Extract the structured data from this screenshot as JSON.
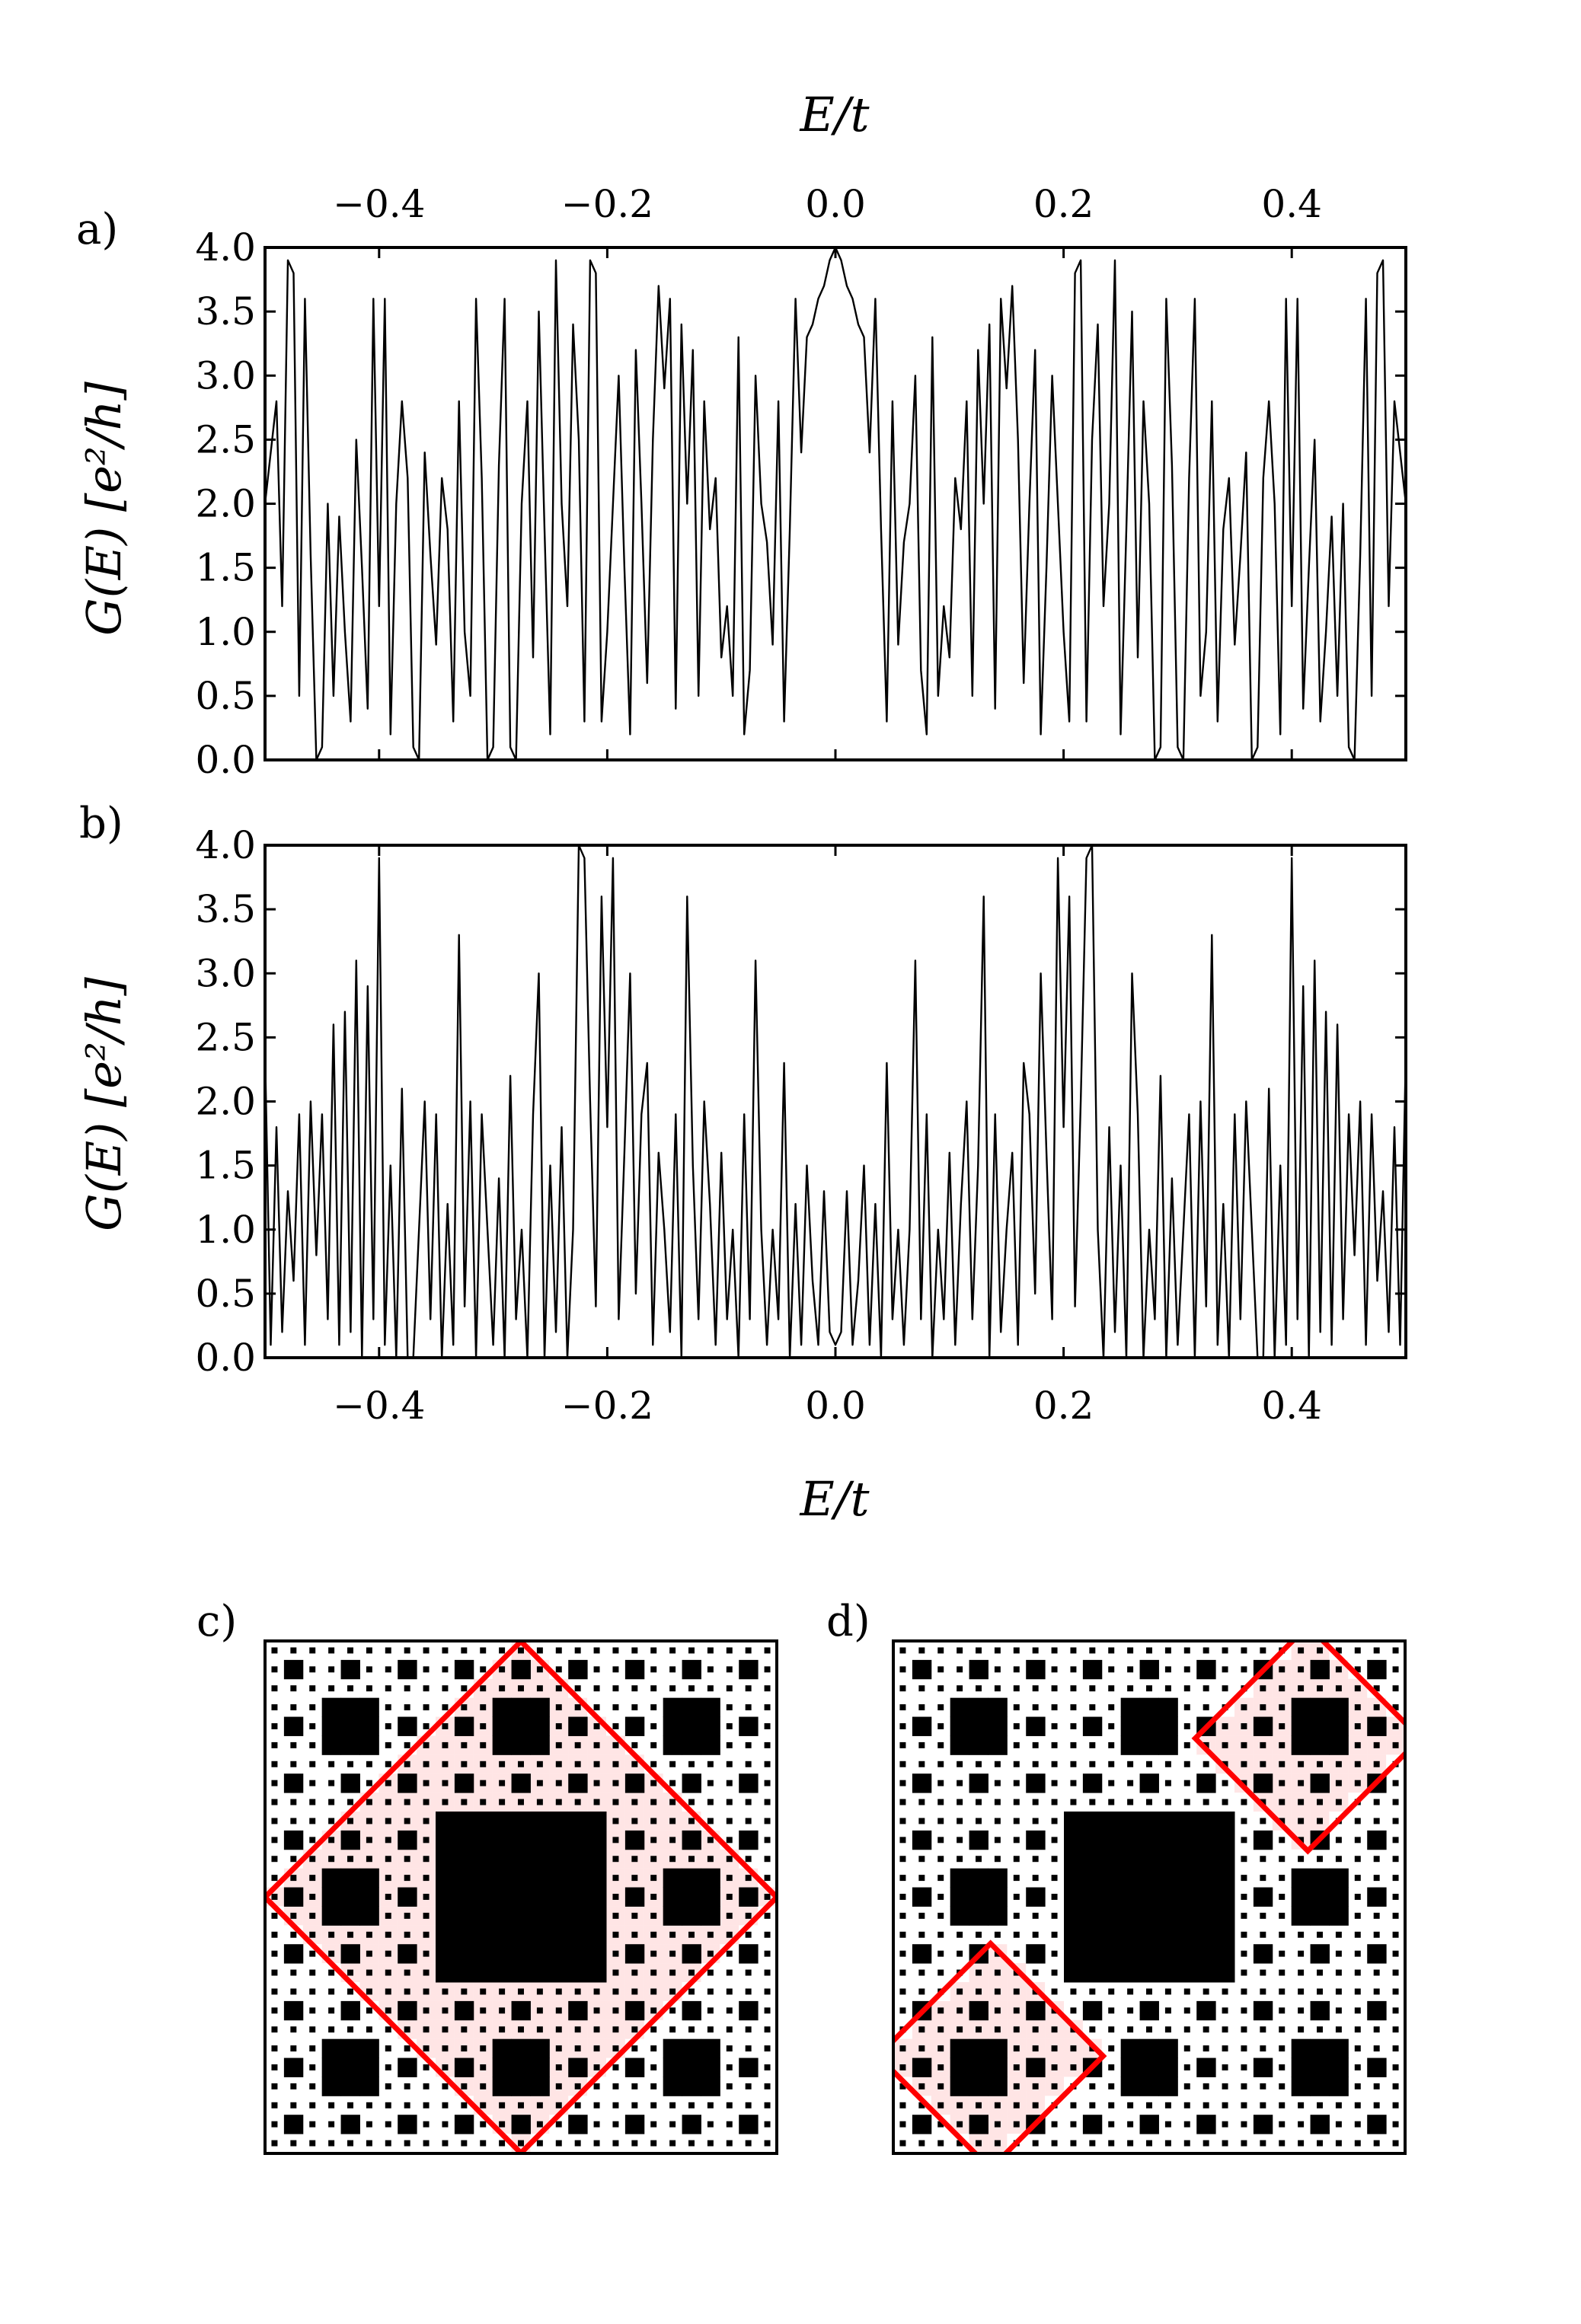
{
  "panel_labels": [
    "a)",
    "b)",
    "c)",
    "d)"
  ],
  "chart_data": [
    {
      "panel": "a)",
      "type": "line",
      "xlabel": "E/t",
      "xlabel_position": "top",
      "ylabel": "G(E) [e²/h]",
      "xlim": [
        -0.5,
        0.5
      ],
      "ylim": [
        0.0,
        4.0
      ],
      "xticks": [
        "−0.4",
        "−0.2",
        "0.0",
        "0.2",
        "0.4"
      ],
      "xtick_values": [
        -0.4,
        -0.2,
        0.0,
        0.2,
        0.4
      ],
      "yticks": [
        "0.0",
        "0.5",
        "1.0",
        "1.5",
        "2.0",
        "2.5",
        "3.0",
        "3.5",
        "4.0"
      ],
      "ytick_values": [
        0.0,
        0.5,
        1.0,
        1.5,
        2.0,
        2.5,
        3.0,
        3.5,
        4.0
      ],
      "color": "#000000",
      "symmetric": true,
      "x": [
        -0.5,
        -0.49,
        -0.485,
        -0.48,
        -0.475,
        -0.47,
        -0.465,
        -0.46,
        -0.455,
        -0.45,
        -0.445,
        -0.44,
        -0.435,
        -0.43,
        -0.425,
        -0.42,
        -0.415,
        -0.41,
        -0.405,
        -0.4,
        -0.395,
        -0.39,
        -0.385,
        -0.38,
        -0.375,
        -0.37,
        -0.365,
        -0.36,
        -0.355,
        -0.35,
        -0.345,
        -0.34,
        -0.335,
        -0.33,
        -0.325,
        -0.32,
        -0.315,
        -0.31,
        -0.305,
        -0.3,
        -0.295,
        -0.29,
        -0.285,
        -0.28,
        -0.275,
        -0.27,
        -0.265,
        -0.26,
        -0.255,
        -0.25,
        -0.245,
        -0.24,
        -0.235,
        -0.23,
        -0.225,
        -0.22,
        -0.215,
        -0.21,
        -0.205,
        -0.2,
        -0.195,
        -0.19,
        -0.185,
        -0.18,
        -0.175,
        -0.17,
        -0.165,
        -0.16,
        -0.155,
        -0.15,
        -0.145,
        -0.14,
        -0.135,
        -0.13,
        -0.125,
        -0.12,
        -0.115,
        -0.11,
        -0.105,
        -0.1,
        -0.095,
        -0.09,
        -0.085,
        -0.08,
        -0.075,
        -0.07,
        -0.065,
        -0.06,
        -0.055,
        -0.05,
        -0.045,
        -0.04,
        -0.035,
        -0.03,
        -0.025,
        -0.02,
        -0.015,
        -0.01,
        -0.005,
        0.0
      ],
      "y": [
        2.0,
        2.8,
        1.2,
        3.9,
        3.8,
        0.5,
        3.6,
        1.6,
        0.0,
        0.1,
        2.0,
        0.5,
        1.9,
        1.0,
        0.3,
        2.5,
        1.5,
        0.4,
        3.6,
        1.2,
        3.6,
        0.2,
        2.0,
        2.8,
        2.2,
        0.1,
        0.0,
        2.4,
        1.6,
        0.9,
        2.2,
        1.8,
        0.3,
        2.8,
        1.0,
        0.5,
        3.6,
        2.2,
        0.0,
        0.1,
        2.3,
        3.6,
        0.1,
        0.0,
        2.0,
        2.8,
        0.8,
        3.5,
        1.8,
        0.2,
        3.9,
        2.0,
        1.2,
        3.4,
        2.5,
        0.3,
        3.9,
        3.8,
        0.3,
        1.0,
        2.0,
        3.0,
        1.5,
        0.2,
        3.2,
        2.0,
        0.6,
        2.5,
        3.7,
        2.9,
        3.6,
        0.4,
        3.4,
        2.0,
        3.2,
        0.5,
        2.8,
        1.8,
        2.2,
        0.8,
        1.2,
        0.5,
        3.3,
        0.2,
        0.7,
        3.0,
        2.0,
        1.7,
        0.9,
        2.8,
        0.3,
        1.8,
        3.6,
        2.4,
        3.3,
        3.4,
        3.6,
        3.7,
        3.9,
        4.0
      ]
    },
    {
      "panel": "b)",
      "type": "line",
      "xlabel": "E/t",
      "xlabel_position": "bottom",
      "ylabel": "G(E) [e²/h]",
      "xlim": [
        -0.5,
        0.5
      ],
      "ylim": [
        0.0,
        4.0
      ],
      "xticks": [
        "−0.4",
        "−0.2",
        "0.0",
        "0.2",
        "0.4"
      ],
      "xtick_values": [
        -0.4,
        -0.2,
        0.0,
        0.2,
        0.4
      ],
      "yticks": [
        "0.0",
        "0.5",
        "1.0",
        "1.5",
        "2.0",
        "2.5",
        "3.0",
        "3.5",
        "4.0"
      ],
      "ytick_values": [
        0.0,
        0.5,
        1.0,
        1.5,
        2.0,
        2.5,
        3.0,
        3.5,
        4.0
      ],
      "color": "#000000",
      "symmetric": true,
      "x": [
        -0.5,
        -0.495,
        -0.49,
        -0.485,
        -0.48,
        -0.475,
        -0.47,
        -0.465,
        -0.46,
        -0.455,
        -0.45,
        -0.445,
        -0.44,
        -0.435,
        -0.43,
        -0.425,
        -0.42,
        -0.415,
        -0.41,
        -0.405,
        -0.4,
        -0.395,
        -0.39,
        -0.385,
        -0.38,
        -0.375,
        -0.37,
        -0.365,
        -0.36,
        -0.355,
        -0.35,
        -0.345,
        -0.34,
        -0.335,
        -0.33,
        -0.325,
        -0.32,
        -0.315,
        -0.31,
        -0.305,
        -0.3,
        -0.295,
        -0.29,
        -0.285,
        -0.28,
        -0.275,
        -0.27,
        -0.265,
        -0.26,
        -0.255,
        -0.25,
        -0.245,
        -0.24,
        -0.235,
        -0.23,
        -0.225,
        -0.22,
        -0.215,
        -0.21,
        -0.205,
        -0.2,
        -0.195,
        -0.19,
        -0.185,
        -0.18,
        -0.175,
        -0.17,
        -0.165,
        -0.16,
        -0.155,
        -0.15,
        -0.145,
        -0.14,
        -0.135,
        -0.13,
        -0.125,
        -0.12,
        -0.115,
        -0.11,
        -0.105,
        -0.1,
        -0.095,
        -0.09,
        -0.085,
        -0.08,
        -0.075,
        -0.07,
        -0.065,
        -0.06,
        -0.055,
        -0.05,
        -0.045,
        -0.04,
        -0.035,
        -0.03,
        -0.025,
        -0.02,
        -0.015,
        -0.01,
        -0.005,
        0.0
      ],
      "y": [
        2.4,
        0.1,
        1.8,
        0.2,
        1.3,
        0.6,
        1.9,
        0.1,
        2.0,
        0.8,
        1.9,
        0.3,
        2.6,
        0.1,
        2.7,
        0.2,
        3.1,
        0.0,
        2.9,
        0.3,
        3.9,
        0.1,
        1.5,
        0.0,
        2.1,
        0.0,
        0.0,
        1.0,
        2.0,
        0.3,
        1.9,
        0.0,
        1.2,
        0.1,
        3.3,
        0.4,
        2.0,
        0.0,
        1.9,
        1.0,
        0.1,
        1.4,
        0.0,
        2.2,
        0.3,
        1.0,
        0.0,
        1.9,
        3.0,
        0.0,
        1.5,
        0.2,
        1.8,
        0.0,
        1.0,
        4.0,
        3.9,
        2.0,
        0.4,
        3.6,
        1.8,
        3.9,
        0.3,
        1.6,
        3.0,
        0.5,
        1.9,
        2.3,
        0.1,
        1.6,
        1.0,
        0.2,
        1.9,
        0.0,
        3.6,
        1.5,
        0.3,
        2.0,
        1.2,
        0.1,
        1.6,
        0.3,
        1.0,
        0.0,
        1.9,
        0.3,
        3.1,
        1.0,
        0.1,
        1.0,
        0.3,
        2.3,
        0.0,
        1.2,
        0.1,
        1.5,
        0.6,
        0.1,
        1.3,
        0.2,
        0.1
      ]
    },
    {
      "panel": "c)",
      "type": "heatmap",
      "description_values": "Sierpinski carpet (level 3, 27×27) with a diamond-shaped edge-state density loop",
      "carpet_levels": 3,
      "loop_center": [
        0.5,
        0.5
      ],
      "loop_radius": 0.5,
      "loop_count": 1,
      "colormap": [
        "#ffffff",
        "#ff0000"
      ]
    },
    {
      "panel": "d)",
      "type": "heatmap",
      "description_values": "Sierpinski carpet (level 3, 27×27) with two corner diamond-shaped edge-state loops",
      "carpet_levels": 3,
      "loops": [
        {
          "center": [
            0.19,
            0.19
          ],
          "radius": 0.22
        },
        {
          "center": [
            0.81,
            0.81
          ],
          "radius": 0.22
        }
      ],
      "colormap": [
        "#ffffff",
        "#ff0000"
      ]
    }
  ]
}
